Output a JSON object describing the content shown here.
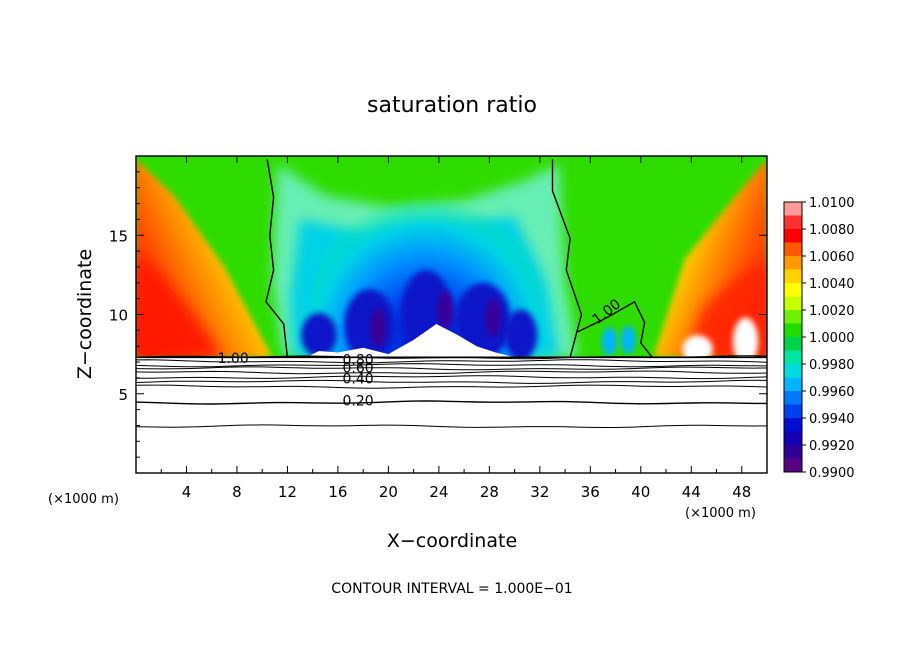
{
  "chart_data": {
    "type": "heatmap",
    "title": "saturation ratio",
    "xlabel": "X−coordinate",
    "ylabel": "Z−coordinate",
    "x_unit_left": "(×1000 m)",
    "x_unit_right": "(×1000 m)",
    "footer": "CONTOUR INTERVAL = 1.000E−01",
    "xlim": [
      0,
      50
    ],
    "ylim": [
      0,
      20
    ],
    "xticks": [
      4,
      8,
      12,
      16,
      20,
      24,
      28,
      32,
      36,
      40,
      44,
      48
    ],
    "xtick_labels": [
      "4",
      "8",
      "12",
      "16",
      "20",
      "24",
      "28",
      "32",
      "36",
      "40",
      "44",
      "48"
    ],
    "yticks": [
      5,
      10,
      15
    ],
    "ytick_labels": [
      "5",
      "10",
      "15"
    ],
    "colorbar": {
      "min": 0.99,
      "max": 1.01,
      "tick_labels": [
        "1.0100",
        "1.0080",
        "1.0060",
        "1.0040",
        "1.0020",
        "1.0000",
        "0.9980",
        "0.9960",
        "0.9940",
        "0.9920",
        "0.9900"
      ],
      "colors": [
        "#ff9a9a",
        "#ff3030",
        "#ff0000",
        "#ff5a00",
        "#ff9a00",
        "#ffd200",
        "#ffff00",
        "#c8ff00",
        "#6ef000",
        "#20dc00",
        "#00d24a",
        "#00e6a0",
        "#00dcdc",
        "#00b4ff",
        "#0078ff",
        "#0040f0",
        "#0010d2",
        "#1400b4",
        "#2e0096",
        "#5a0082"
      ]
    },
    "contour_labels": [
      {
        "text": "1.00",
        "x": 7.7,
        "z": 7.2
      },
      {
        "text": "0.80",
        "x": 17.6,
        "z": 7.1
      },
      {
        "text": "0.60",
        "x": 17.6,
        "z": 6.6
      },
      {
        "text": "0.40",
        "x": 17.6,
        "z": 5.9
      },
      {
        "text": "0.20",
        "x": 17.6,
        "z": 4.5
      },
      {
        "text": "1.00",
        "x": 37.5,
        "z": 10.2
      }
    ],
    "contour_levels_below": [
      7.3,
      7.05,
      6.8,
      6.6,
      6.35,
      6.05,
      5.75,
      5.45,
      4.45,
      2.95
    ],
    "sat_one_boundaries": [
      [
        [
          10.4,
          19.8
        ],
        [
          10.9,
          17.4
        ],
        [
          10.6,
          15.0
        ],
        [
          10.9,
          12.8
        ],
        [
          10.3,
          10.8
        ],
        [
          11.7,
          9.4
        ],
        [
          12.0,
          7.3
        ]
      ],
      [
        [
          33.0,
          19.8
        ],
        [
          33.0,
          17.8
        ],
        [
          34.4,
          14.8
        ],
        [
          34.1,
          12.8
        ],
        [
          35.3,
          10.0
        ],
        [
          34.4,
          7.3
        ]
      ],
      [
        [
          35.0,
          8.9
        ],
        [
          37.3,
          9.8
        ],
        [
          39.5,
          10.8
        ],
        [
          40.3,
          9.5
        ],
        [
          40.0,
          8.2
        ],
        [
          40.9,
          7.3
        ]
      ]
    ],
    "ground_z": 7.3
  }
}
